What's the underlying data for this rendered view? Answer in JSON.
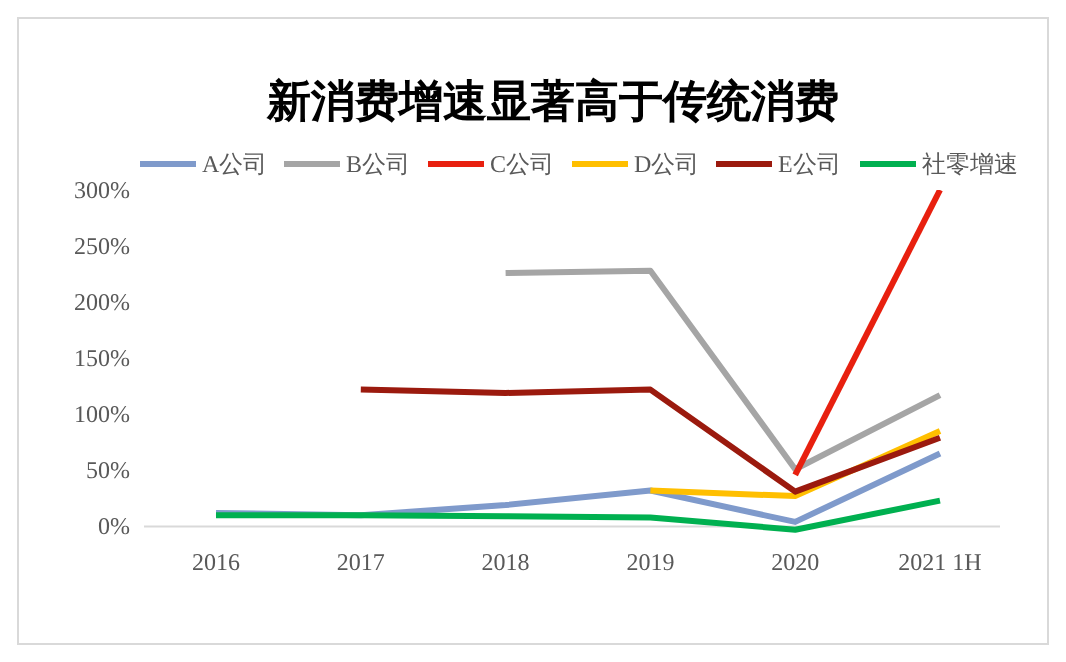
{
  "chart_data": {
    "type": "line",
    "title": "新消费增速显著高于传统消费",
    "categories": [
      "2016",
      "2017",
      "2018",
      "2019",
      "2020",
      "2021 1H"
    ],
    "series": [
      {
        "name": "A公司",
        "color": "#7f9acb",
        "values": [
          12,
          10,
          19,
          32,
          4,
          65
        ]
      },
      {
        "name": "B公司",
        "color": "#a5a5a5",
        "values": [
          null,
          null,
          226,
          228,
          51,
          117
        ]
      },
      {
        "name": "C公司",
        "color": "#e8200f",
        "values": [
          null,
          null,
          null,
          null,
          46,
          300
        ]
      },
      {
        "name": "D公司",
        "color": "#ffbf00",
        "values": [
          null,
          null,
          null,
          32,
          27,
          85
        ]
      },
      {
        "name": "E公司",
        "color": "#9b1a0e",
        "values": [
          null,
          122,
          119,
          122,
          31,
          79
        ]
      },
      {
        "name": "社零增速",
        "color": "#00b050",
        "values": [
          10,
          10,
          9,
          8,
          -3,
          23
        ]
      }
    ],
    "ylim": [
      -5,
      300
    ],
    "yticks": [
      {
        "value": 0,
        "label": "0%"
      },
      {
        "value": 50,
        "label": "50%"
      },
      {
        "value": 100,
        "label": "100%"
      },
      {
        "value": 150,
        "label": "150%"
      },
      {
        "value": 200,
        "label": "200%"
      },
      {
        "value": 250,
        "label": "250%"
      },
      {
        "value": 300,
        "label": "300%"
      }
    ],
    "legend": "top",
    "marker": "none",
    "line_style": "solid"
  }
}
